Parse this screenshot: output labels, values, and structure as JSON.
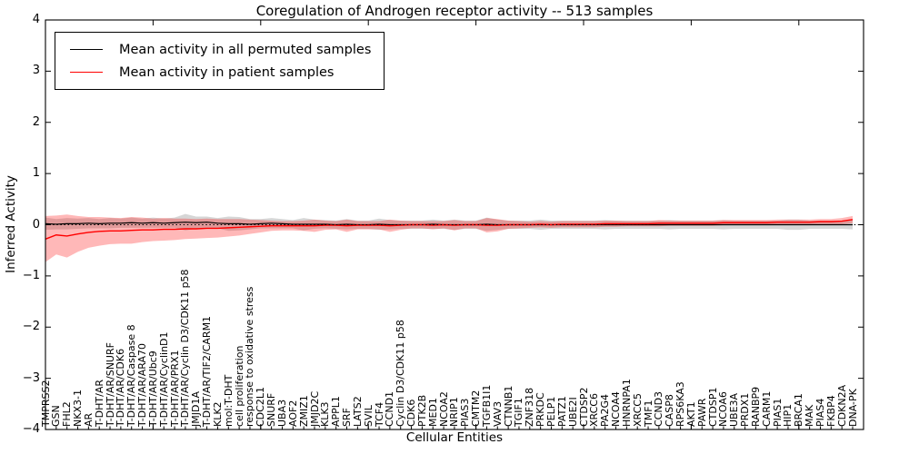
{
  "title": "Coregulation of Androgen receptor activity -- 513 samples",
  "legend": {
    "items": [
      {
        "label": "Mean activity in all permuted samples",
        "color": "#000000"
      },
      {
        "label": "Mean activity in patient samples",
        "color": "#ff0000"
      }
    ]
  },
  "axes": {
    "xlabel": "Cellular Entities",
    "ylabel": "Inferred Activity",
    "ytick_labels": [
      "4",
      "3",
      "2",
      "1",
      "0",
      "−1",
      "−2",
      "−3",
      "−4"
    ],
    "ytick_values": [
      4,
      3,
      2,
      1,
      0,
      -1,
      -2,
      -3,
      -4
    ]
  },
  "chart_data": {
    "type": "line",
    "title": "Coregulation of Androgen receptor activity -- 513 samples",
    "xlabel": "Cellular Entities",
    "ylabel": "Inferred Activity",
    "ylim": [
      -4,
      4
    ],
    "grid": false,
    "zero_line_style": "black dotted",
    "legend_position": "upper left",
    "x_major_tick_every": 10,
    "categories": [
      "TMPRSS2",
      "GSN",
      "FHL2",
      "NKX3-1",
      "AR",
      "T-DHT/AR",
      "T-DHT/AR/SNURF",
      "T-DHT/AR/CDK6",
      "T-DHT/AR/Caspase 8",
      "T-DHT/AR/ARA70",
      "T-DHT/AR/Ubc9",
      "T-DHT/AR/CyclinD1",
      "T-DHT/AR/PRX1",
      "T-DHT/AR/Cyclin D3/CDK11 p58",
      "JMJD1A",
      "T-DHT/AR/TIF2/CARM1",
      "KLK2",
      "mol:T-DHT",
      "cell proliferation",
      "response to oxidative stress",
      "CDC2L1",
      "SNURF",
      "UBA3",
      "AOF2",
      "ZMIZ1",
      "JMJD2C",
      "KLK3",
      "APPL1",
      "SRF",
      "LATS2",
      "SVIL",
      "TCF4",
      "CCND1",
      "Cyclin D3/CDK11 p58",
      "CDK6",
      "PTK2B",
      "MED1",
      "NCOA2",
      "NRIP1",
      "PIAS3",
      "CMTM2",
      "TGFB1I1",
      "VAV3",
      "CTNNB1",
      "TGIF1",
      "ZNF318",
      "PRKDC",
      "PELP1",
      "PATZ1",
      "UBE2I",
      "CTDSP2",
      "XRCC6",
      "PA2G4",
      "NCOA4",
      "HNRNPA1",
      "XRCC5",
      "TMF1",
      "CCND3",
      "CASP8",
      "RPS6KA3",
      "AKT1",
      "PAWR",
      "CTDSP1",
      "NCOA6",
      "UBE3A",
      "PRDX1",
      "RANBP9",
      "CARM1",
      "PIAS1",
      "HIP1",
      "BRCA1",
      "MAK",
      "PIAS4",
      "FKBP4",
      "CDKN2A",
      "DNA-PK"
    ],
    "series": [
      {
        "name": "Mean activity in all permuted samples",
        "color": "#000000",
        "band_color": "rgba(0,0,0,0.16)",
        "mean": [
          0.02,
          0.01,
          0.02,
          0.02,
          0.03,
          0.02,
          0.03,
          0.03,
          0.04,
          0.03,
          0.04,
          0.03,
          0.04,
          0.05,
          0.04,
          0.05,
          0.03,
          0.02,
          0.02,
          0.01,
          0.02,
          0.03,
          0.02,
          0.01,
          0.01,
          0.01,
          0.01,
          0.0,
          0.01,
          0.0,
          0.0,
          0.01,
          0.0,
          0.0,
          0.0,
          0.0,
          0.01,
          0.0,
          0.0,
          0.0,
          0.0,
          0.01,
          0.0,
          0.0,
          0.0,
          0.0,
          0.0,
          0.0,
          0.0,
          0.0,
          0.0,
          0.0,
          0.0,
          0.0,
          0.0,
          0.0,
          0.0,
          0.0,
          0.0,
          0.0,
          0.0,
          0.0,
          0.0,
          0.0,
          0.0,
          0.0,
          0.0,
          0.0,
          0.0,
          0.0,
          0.0,
          0.0,
          0.0,
          0.0,
          0.0,
          0.0
        ],
        "std": [
          0.12,
          0.1,
          0.11,
          0.1,
          0.1,
          0.09,
          0.1,
          0.09,
          0.1,
          0.09,
          0.1,
          0.09,
          0.1,
          0.16,
          0.12,
          0.11,
          0.1,
          0.14,
          0.13,
          0.1,
          0.09,
          0.1,
          0.09,
          0.08,
          0.12,
          0.09,
          0.08,
          0.08,
          0.1,
          0.08,
          0.08,
          0.11,
          0.09,
          0.08,
          0.08,
          0.08,
          0.09,
          0.08,
          0.1,
          0.08,
          0.08,
          0.13,
          0.1,
          0.08,
          0.08,
          0.08,
          0.1,
          0.08,
          0.08,
          0.08,
          0.08,
          0.08,
          0.09,
          0.08,
          0.08,
          0.08,
          0.08,
          0.08,
          0.09,
          0.08,
          0.08,
          0.08,
          0.08,
          0.09,
          0.08,
          0.08,
          0.08,
          0.08,
          0.08,
          0.1,
          0.1,
          0.08,
          0.08,
          0.08,
          0.08,
          0.09
        ]
      },
      {
        "name": "Mean activity in patient samples",
        "color": "#ff0000",
        "band_color": "rgba(255,0,0,0.28)",
        "mean": [
          -0.28,
          -0.2,
          -0.22,
          -0.18,
          -0.15,
          -0.13,
          -0.12,
          -0.12,
          -0.11,
          -0.1,
          -0.1,
          -0.09,
          -0.09,
          -0.08,
          -0.08,
          -0.07,
          -0.07,
          -0.06,
          -0.05,
          -0.04,
          -0.03,
          -0.02,
          -0.02,
          -0.02,
          -0.02,
          -0.02,
          -0.01,
          -0.01,
          -0.02,
          -0.01,
          -0.01,
          -0.01,
          -0.02,
          -0.01,
          0.0,
          0.0,
          -0.01,
          0.0,
          -0.01,
          0.0,
          0.0,
          -0.01,
          -0.01,
          0.0,
          0.0,
          0.0,
          0.01,
          0.0,
          0.01,
          0.01,
          0.01,
          0.01,
          0.02,
          0.02,
          0.02,
          0.02,
          0.02,
          0.03,
          0.03,
          0.03,
          0.03,
          0.03,
          0.03,
          0.04,
          0.04,
          0.04,
          0.04,
          0.04,
          0.05,
          0.05,
          0.05,
          0.05,
          0.06,
          0.06,
          0.07,
          0.1
        ],
        "std": [
          0.45,
          0.38,
          0.42,
          0.35,
          0.3,
          0.28,
          0.26,
          0.25,
          0.26,
          0.24,
          0.22,
          0.22,
          0.21,
          0.2,
          0.19,
          0.19,
          0.18,
          0.17,
          0.16,
          0.14,
          0.12,
          0.1,
          0.09,
          0.09,
          0.1,
          0.12,
          0.09,
          0.08,
          0.12,
          0.08,
          0.08,
          0.08,
          0.12,
          0.09,
          0.07,
          0.07,
          0.08,
          0.07,
          0.1,
          0.07,
          0.07,
          0.14,
          0.12,
          0.08,
          0.07,
          0.06,
          0.06,
          0.06,
          0.06,
          0.06,
          0.06,
          0.06,
          0.06,
          0.06,
          0.05,
          0.05,
          0.05,
          0.06,
          0.05,
          0.05,
          0.05,
          0.05,
          0.05,
          0.05,
          0.05,
          0.05,
          0.05,
          0.05,
          0.05,
          0.05,
          0.05,
          0.05,
          0.05,
          0.05,
          0.06,
          0.07
        ]
      }
    ]
  }
}
